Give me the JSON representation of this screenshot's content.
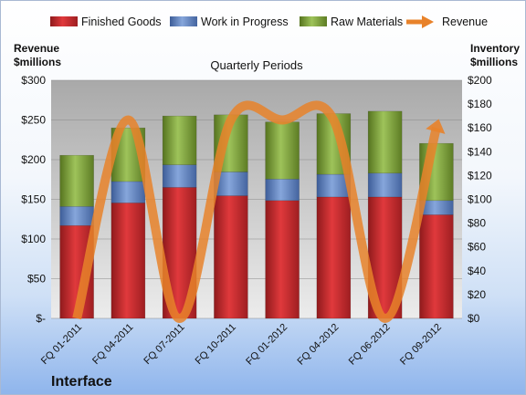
{
  "chart_data": {
    "type": "bar",
    "subtitle": "Quarterly Periods",
    "company": "Interface",
    "left_axis_title": [
      "Revenue",
      "$millions"
    ],
    "right_axis_title": [
      "Inventory",
      "$millions"
    ],
    "left_ticks": [
      "$-",
      "$50",
      "$100",
      "$150",
      "$200",
      "$250",
      "$300"
    ],
    "right_ticks": [
      "$0",
      "$20",
      "$40",
      "$60",
      "$80",
      "$100",
      "$120",
      "$140",
      "$160",
      "$180",
      "$200"
    ],
    "ylim_left": [
      0,
      300
    ],
    "ylim_right": [
      0,
      200
    ],
    "categories": [
      "FQ 01-2011",
      "FQ 04-2011",
      "FQ 07-2011",
      "FQ 10-2011",
      "FQ 01-2012",
      "FQ 04-2012",
      "FQ 06-2012",
      "FQ 09-2012"
    ],
    "series": [
      {
        "name": "Finished Goods",
        "axis": "right",
        "color": "#c0282c",
        "values": [
          78,
          97,
          110,
          103,
          99,
          102,
          102,
          87
        ]
      },
      {
        "name": "Work in Progress",
        "axis": "right",
        "color": "#5b7fbf",
        "values": [
          16,
          18,
          19,
          20,
          18,
          19,
          20,
          12
        ]
      },
      {
        "name": "Raw Materials",
        "axis": "right",
        "color": "#7ea23a",
        "values": [
          43,
          45,
          41,
          48,
          48,
          51,
          52,
          48
        ]
      },
      {
        "name": "Revenue",
        "axis": "left",
        "type": "line",
        "color": "#e8822a",
        "values": [
          0,
          250,
          0,
          250,
          250,
          250,
          0,
          240
        ]
      }
    ],
    "legend_position": "top",
    "grid": true
  }
}
